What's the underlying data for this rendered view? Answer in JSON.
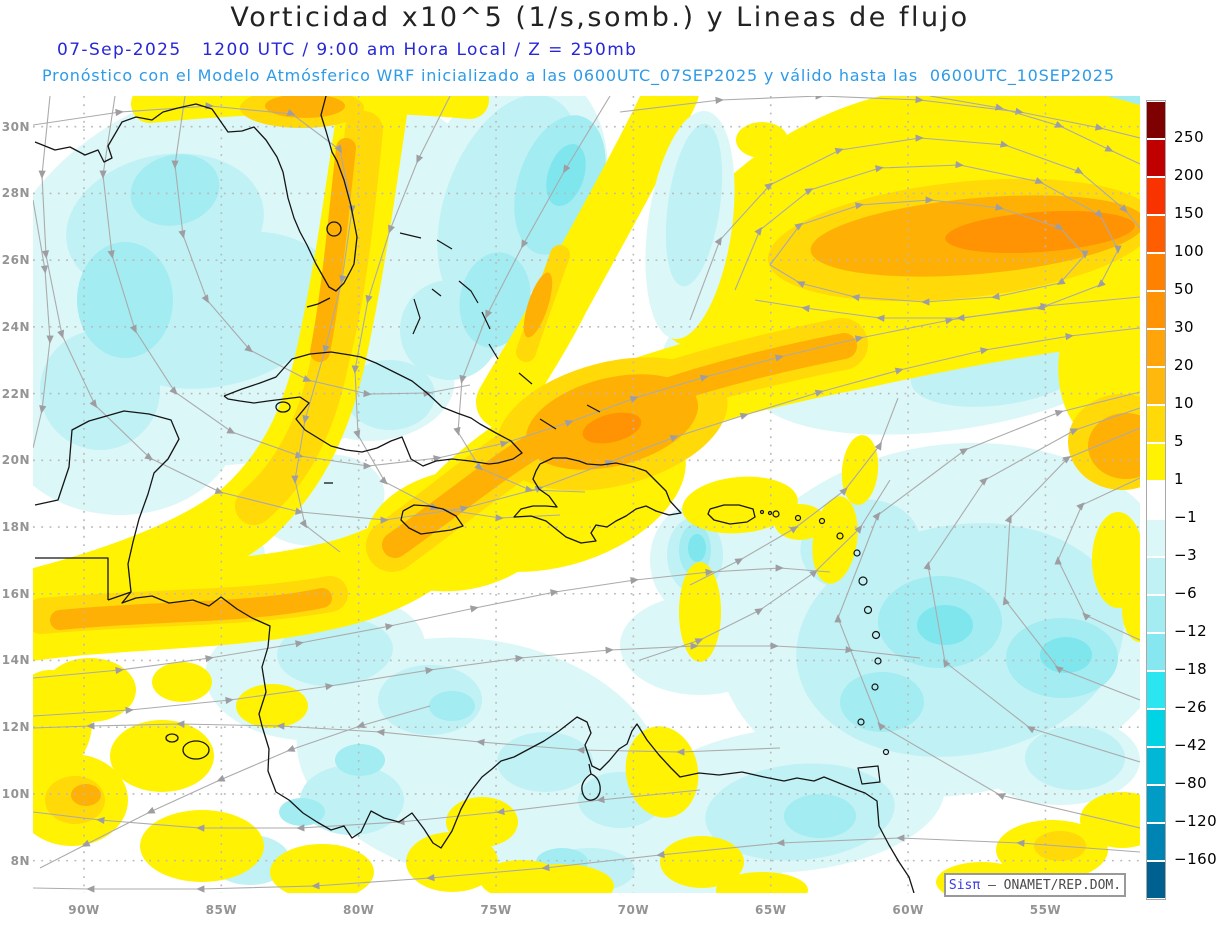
{
  "header": {
    "title": "Vorticidad x10^5 (1/s,somb.) y Lineas de flujo",
    "datetime_line": "07-Sep-2025   1200 UTC / 9:00 am Hora Local / Z = 250mb",
    "forecast_line": "Pronóstico con el Modelo Atmósferico WRF inicializado a las 0600UTC_07SEP2025 y válido hasta las  0600UTC_10SEP2025"
  },
  "map": {
    "lat_labels": [
      "30N",
      "28N",
      "26N",
      "24N",
      "22N",
      "20N",
      "18N",
      "16N",
      "14N",
      "12N",
      "10N",
      "8N"
    ],
    "lon_labels": [
      "90W",
      "85W",
      "80W",
      "75W",
      "70W",
      "65W",
      "60W",
      "55W"
    ]
  },
  "colorbar": {
    "tick_labels": [
      "250",
      "200",
      "150",
      "100",
      "50",
      "30",
      "20",
      "10",
      "5",
      "1",
      "-1",
      "-3",
      "-6",
      "-12",
      "-18",
      "-26",
      "-42",
      "-80",
      "-120",
      "-160"
    ],
    "segment_colors": [
      "#7f0000",
      "#c00000",
      "#f83300",
      "#ff5e00",
      "#ff8100",
      "#ff9303",
      "#ffa50a",
      "#ffb90d",
      "#ffd908",
      "#fff203",
      "#ffffff",
      "#dcf7f8",
      "#c0f1f5",
      "#a2ecf2",
      "#86e7f0",
      "#2be6f0",
      "#00d3e4",
      "#00b7d6",
      "#009cc6",
      "#0084b4",
      "#00608f"
    ]
  },
  "watermark": {
    "brand": "Sisπ",
    "rest": " – ONAMET/REP.DOM."
  },
  "chart_data": {
    "type": "heatmap",
    "title": "Vorticidad x10^5 (1/s,somb.) y Lineas de flujo",
    "valid_time": "07-Sep-2025 1200 UTC / 9:00 am Hora Local",
    "level": "Z = 250mb",
    "model_run": "WRF inicializado 0600UTC_07SEP2025, válido hasta 0600UTC_10SEP2025",
    "lat_ticks": [
      "30N",
      "28N",
      "26N",
      "24N",
      "22N",
      "20N",
      "18N",
      "16N",
      "14N",
      "12N",
      "10N",
      "8N"
    ],
    "lon_ticks": [
      "90W",
      "85W",
      "80W",
      "75W",
      "70W",
      "65W",
      "60W",
      "55W"
    ],
    "shading_levels": [
      -160,
      -120,
      -80,
      -42,
      -26,
      -18,
      -12,
      -6,
      -3,
      -1,
      1,
      5,
      10,
      20,
      30,
      50,
      100,
      150,
      200,
      250
    ],
    "palette": [
      "#7f0000",
      "#c00000",
      "#f83300",
      "#ff5e00",
      "#ff8100",
      "#ff9303",
      "#ffa50a",
      "#ffb90d",
      "#ffd908",
      "#fff203",
      "#ffffff",
      "#dcf7f8",
      "#c0f1f5",
      "#a2ecf2",
      "#86e7f0",
      "#2be6f0",
      "#00d3e4",
      "#00b7d6",
      "#009cc6",
      "#0084b4",
      "#00608f"
    ],
    "overlays": [
      "streamlines (gray, arrowed)",
      "coastlines (black)",
      "dotted lat/lon grid"
    ],
    "legend_position": "right",
    "notable_features": [
      "orange anticyclonic vorticity streak across top-right (25-28N, 52-70W)",
      "diagonal positive vorticity band through Florida toward western Cuba",
      "strong positive band from 16N/90W northeast through Jamaica/Hispaniola",
      "negative (cyan) vorticity over Gulf of Mexico and eastern Caribbean"
    ]
  }
}
